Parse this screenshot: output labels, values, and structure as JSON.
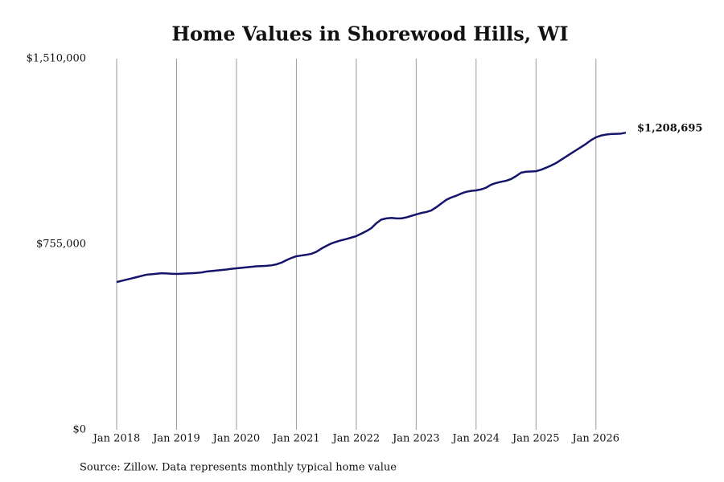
{
  "chart_data": {
    "type": "line",
    "title": "Home Values in Shorewood Hills, WI",
    "source": "Source: Zillow. Data represents monthly typical home value",
    "color": "#14146b",
    "x": [
      "2018-01",
      "2018-02",
      "2018-03",
      "2018-04",
      "2018-05",
      "2018-06",
      "2018-07",
      "2018-08",
      "2018-09",
      "2018-10",
      "2018-11",
      "2018-12",
      "2019-01",
      "2019-02",
      "2019-03",
      "2019-04",
      "2019-05",
      "2019-06",
      "2019-07",
      "2019-08",
      "2019-09",
      "2019-10",
      "2019-11",
      "2019-12",
      "2020-01",
      "2020-02",
      "2020-03",
      "2020-04",
      "2020-05",
      "2020-06",
      "2020-07",
      "2020-08",
      "2020-09",
      "2020-10",
      "2020-11",
      "2020-12",
      "2021-01",
      "2021-02",
      "2021-03",
      "2021-04",
      "2021-05",
      "2021-06",
      "2021-07",
      "2021-08",
      "2021-09",
      "2021-10",
      "2021-11",
      "2021-12",
      "2022-01",
      "2022-02",
      "2022-03",
      "2022-04",
      "2022-05",
      "2022-06",
      "2022-07",
      "2022-08",
      "2022-09",
      "2022-10",
      "2022-11",
      "2022-12",
      "2023-01",
      "2023-02",
      "2023-03",
      "2023-04",
      "2023-05",
      "2023-06",
      "2023-07",
      "2023-08",
      "2023-09",
      "2023-10",
      "2023-11",
      "2023-12",
      "2024-01",
      "2024-02",
      "2024-03",
      "2024-04",
      "2024-05",
      "2024-06",
      "2024-07",
      "2024-08",
      "2024-09",
      "2024-10",
      "2024-11",
      "2024-12",
      "2025-01",
      "2025-02",
      "2025-03",
      "2025-04",
      "2025-05",
      "2025-06",
      "2025-07",
      "2025-08",
      "2025-09",
      "2025-10",
      "2025-11",
      "2025-12",
      "2026-01",
      "2026-02",
      "2026-03",
      "2026-04",
      "2026-05",
      "2026-06",
      "2026-07"
    ],
    "values": [
      601000,
      606000,
      611000,
      616000,
      621000,
      626000,
      631000,
      633000,
      635000,
      637000,
      636000,
      635000,
      634000,
      635000,
      636000,
      637000,
      638000,
      640000,
      644000,
      646000,
      648000,
      650000,
      652000,
      655000,
      657000,
      659000,
      661000,
      663000,
      665000,
      666000,
      667000,
      669000,
      673000,
      680000,
      690000,
      699000,
      706000,
      709000,
      712000,
      716000,
      724000,
      737000,
      748000,
      758000,
      765000,
      771000,
      776000,
      782000,
      788000,
      798000,
      808000,
      820000,
      840000,
      855000,
      860000,
      862000,
      860000,
      860000,
      864000,
      870000,
      876000,
      882000,
      886000,
      892000,
      905000,
      920000,
      935000,
      945000,
      952000,
      961000,
      968000,
      972000,
      974000,
      978000,
      985000,
      997000,
      1004000,
      1009000,
      1013000,
      1020000,
      1032000,
      1046000,
      1050000,
      1051000,
      1052000,
      1058000,
      1066000,
      1075000,
      1085000,
      1098000,
      1111000,
      1124000,
      1137000,
      1150000,
      1163000,
      1178000,
      1190000,
      1197000,
      1201000,
      1203000,
      1204000,
      1205000,
      1208695
    ],
    "value_labels": [
      null,
      null,
      null,
      null,
      null,
      null,
      null,
      null,
      null,
      null,
      null,
      null,
      null,
      null,
      null,
      null,
      null,
      null,
      null,
      null,
      null,
      null,
      null,
      null,
      null,
      null,
      null,
      null,
      null,
      null,
      null,
      null,
      null,
      null,
      null,
      null,
      null,
      null,
      null,
      null,
      null,
      null,
      null,
      null,
      null,
      null,
      null,
      null,
      null,
      null,
      null,
      null,
      null,
      null,
      null,
      null,
      null,
      null,
      null,
      null,
      null,
      null,
      null,
      null,
      null,
      null,
      null,
      null,
      null,
      null,
      null,
      null,
      null,
      null,
      null,
      null,
      null,
      null,
      null,
      null,
      null,
      null,
      null,
      null,
      null,
      null,
      null,
      null,
      null,
      null,
      null,
      null,
      null,
      null,
      null,
      null,
      null,
      null,
      null,
      null,
      null,
      null,
      "$1,208,695"
    ],
    "xlim": [
      "2018-01",
      "2026-07"
    ],
    "xticks": [
      {
        "value": "2018-01",
        "label": "Jan 2018"
      },
      {
        "value": "2019-01",
        "label": "Jan 2019"
      },
      {
        "value": "2020-01",
        "label": "Jan 2020"
      },
      {
        "value": "2021-01",
        "label": "Jan 2021"
      },
      {
        "value": "2022-01",
        "label": "Jan 2022"
      },
      {
        "value": "2023-01",
        "label": "Jan 2023"
      },
      {
        "value": "2024-01",
        "label": "Jan 2024"
      },
      {
        "value": "2025-01",
        "label": "Jan 2025"
      },
      {
        "value": "2026-01",
        "label": "Jan 2026"
      }
    ],
    "ylim": [
      0,
      1510000
    ],
    "yticks": [
      {
        "value": 0,
        "label": "$0"
      },
      {
        "value": 755000,
        "label": "$755,000"
      },
      {
        "value": 1510000,
        "label": "$1,510,000"
      }
    ],
    "grid": "x"
  }
}
